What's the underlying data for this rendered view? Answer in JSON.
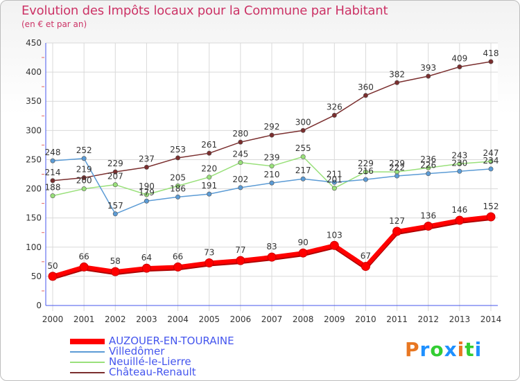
{
  "title": "Evolution des Impôts locaux pour la Commune par Habitant",
  "subtitle": "(en € et par an)",
  "brand": {
    "letters": [
      "P",
      "r",
      "o",
      "x",
      "i",
      "t",
      "i"
    ],
    "colors": [
      "#e87722",
      "#1e90ff",
      "#32cd32",
      "#1e90ff",
      "#e87722",
      "#32cd32",
      "#1e90ff"
    ]
  },
  "chart_data": {
    "type": "line",
    "x": [
      "2000",
      "2001",
      "2002",
      "2003",
      "2004",
      "2005",
      "2006",
      "2007",
      "2008",
      "2009",
      "2010",
      "2011",
      "2012",
      "2013",
      "2014"
    ],
    "ylim": [
      0,
      450
    ],
    "yticks": [
      "0",
      "50",
      "100",
      "150",
      "200",
      "250",
      "300",
      "350",
      "400",
      "450"
    ],
    "grid": true,
    "legend_position": "bottom-left",
    "series": [
      {
        "name": "AUZOUER-EN-TOURAINE",
        "color": "#ff0000",
        "values": [
          50,
          66,
          58,
          64,
          66,
          73,
          77,
          83,
          90,
          103,
          67,
          127,
          136,
          146,
          152
        ],
        "labels": [
          "50",
          "66",
          "58",
          "64",
          "66",
          "73",
          "77",
          "83",
          "90",
          "103",
          "67",
          "127",
          "136",
          "146",
          "152"
        ]
      },
      {
        "name": "Villedômer",
        "color": "#5b9bd5",
        "values": [
          248,
          252,
          157,
          179,
          186,
          191,
          202,
          210,
          217,
          211,
          216,
          222,
          226,
          230,
          234
        ],
        "labels": [
          "248",
          "252",
          "157",
          "179",
          "186",
          "191",
          "202",
          "210",
          "217",
          "211",
          "216",
          "222",
          "226",
          "230",
          "234"
        ]
      },
      {
        "name": "Neuillé-le-Lierre",
        "color": "#99e07a",
        "values": [
          188,
          200,
          207,
          190,
          205,
          220,
          245,
          239,
          255,
          201,
          229,
          229,
          236,
          243,
          247
        ],
        "labels": [
          "188",
          "200",
          "207",
          "190",
          "205",
          "220",
          "245",
          "239",
          "255",
          "201",
          "229",
          "229",
          "236",
          "243",
          "247"
        ]
      },
      {
        "name": "Château-Renault",
        "color": "#7a2e2e",
        "values": [
          214,
          219,
          229,
          237,
          253,
          261,
          280,
          292,
          300,
          326,
          360,
          382,
          393,
          409,
          418
        ],
        "labels": [
          "214",
          "219",
          "229",
          "237",
          "253",
          "261",
          "280",
          "292",
          "300",
          "326",
          "360",
          "382",
          "393",
          "409",
          "418"
        ]
      }
    ]
  }
}
